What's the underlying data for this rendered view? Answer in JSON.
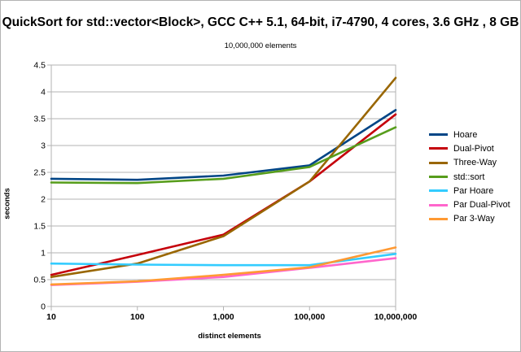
{
  "chart_data": {
    "type": "line",
    "title": "QuickSort for std::vector<Block>, GCC C++ 5.1, 64-bit, i7-4790, 4 cores, 3.6 GHz , 8 GB",
    "subtitle": "10,000,000 elements",
    "xlabel": "distinct elements",
    "ylabel": "seconds",
    "categories": [
      "10",
      "100",
      "1,000",
      "100,000",
      "10,000,000"
    ],
    "ylim": [
      0,
      4.5
    ],
    "yticks": [
      "0",
      "0.5",
      "1",
      "1.5",
      "2",
      "2.5",
      "3",
      "3.5",
      "4",
      "4.5"
    ],
    "grid": true,
    "legend_position": "right",
    "series": [
      {
        "name": "Hoare",
        "color": "#004586",
        "values": [
          2.38,
          2.36,
          2.44,
          2.63,
          3.66
        ]
      },
      {
        "name": "Dual-Pivot",
        "color": "#c5000b",
        "values": [
          0.59,
          0.96,
          1.34,
          2.33,
          3.58
        ]
      },
      {
        "name": "Three-Way",
        "color": "#996600",
        "values": [
          0.55,
          0.8,
          1.31,
          2.33,
          4.26
        ]
      },
      {
        "name": "std::sort",
        "color": "#579d1c",
        "values": [
          2.31,
          2.3,
          2.38,
          2.6,
          3.34
        ]
      },
      {
        "name": "Par Hoare",
        "color": "#33ccff",
        "values": [
          0.8,
          0.78,
          0.77,
          0.77,
          0.98
        ]
      },
      {
        "name": "Par Dual-Pivot",
        "color": "#ff66cc",
        "values": [
          0.4,
          0.46,
          0.55,
          0.72,
          0.9
        ]
      },
      {
        "name": "Par 3-Way",
        "color": "#ff9933",
        "values": [
          0.41,
          0.47,
          0.59,
          0.73,
          1.1
        ]
      }
    ]
  }
}
